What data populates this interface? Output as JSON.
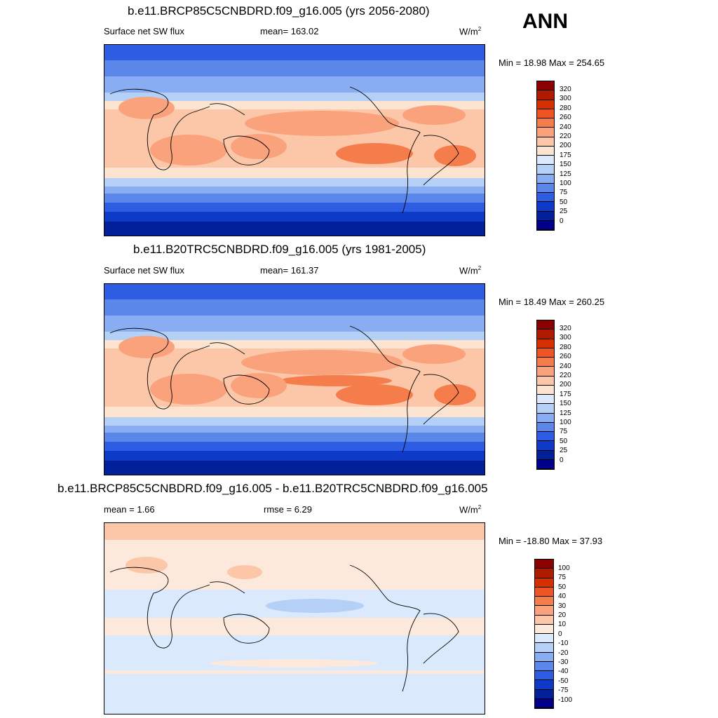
{
  "season": "ANN",
  "panels": [
    {
      "title": "b.e11.BRCP85C5CNBDRD.f09_g16.005 (yrs 2056-2080)",
      "left_label": "Surface net SW flux",
      "center_label": "mean= 163.02",
      "units": "W/m",
      "units_sup": "2",
      "minmax": "Min =  18.98 Max = 254.65",
      "levels": [
        "320",
        "300",
        "280",
        "260",
        "240",
        "220",
        "200",
        "175",
        "150",
        "125",
        "100",
        "75",
        "50",
        "25",
        "0"
      ],
      "kind": "field"
    },
    {
      "title": "b.e11.B20TRC5CNBDRD.f09_g16.005 (yrs 1981-2005)",
      "left_label": "Surface net SW flux",
      "center_label": "mean= 161.37",
      "units": "W/m",
      "units_sup": "2",
      "minmax": "Min =  18.49 Max = 260.25",
      "levels": [
        "320",
        "300",
        "280",
        "260",
        "240",
        "220",
        "200",
        "175",
        "150",
        "125",
        "100",
        "75",
        "50",
        "25",
        "0"
      ],
      "kind": "field"
    },
    {
      "title": "b.e11.BRCP85C5CNBDRD.f09_g16.005 - b.e11.B20TRC5CNBDRD.f09_g16.005",
      "left_label": "mean =   1.66",
      "center_label": "rmse =   6.29",
      "units": "W/m",
      "units_sup": "2",
      "minmax": "Min = -18.80 Max =  37.93",
      "levels": [
        "100",
        "75",
        "50",
        "40",
        "30",
        "20",
        "10",
        "0",
        "-10",
        "-20",
        "-30",
        "-40",
        "-50",
        "-75",
        "-100"
      ],
      "kind": "diff"
    }
  ],
  "colors": {
    "field_scale": [
      "#8b0000",
      "#b01b00",
      "#d63000",
      "#ee5522",
      "#f57d4c",
      "#f9a27c",
      "#fcc7a8",
      "#fde4d0",
      "#dae9fb",
      "#b4d0f7",
      "#88adf2",
      "#5b87ea",
      "#2d5de2",
      "#0d3bc8",
      "#02209a",
      "#00008b"
    ],
    "diff_scale": [
      "#8b0000",
      "#b01b00",
      "#d63000",
      "#ee5522",
      "#f57d4c",
      "#f9a27c",
      "#fcc7a8",
      "#fde9dc",
      "#dae9fb",
      "#b4d0f7",
      "#88adf2",
      "#5b87ea",
      "#2d5de2",
      "#0d3bc8",
      "#02209a",
      "#00008b"
    ]
  }
}
